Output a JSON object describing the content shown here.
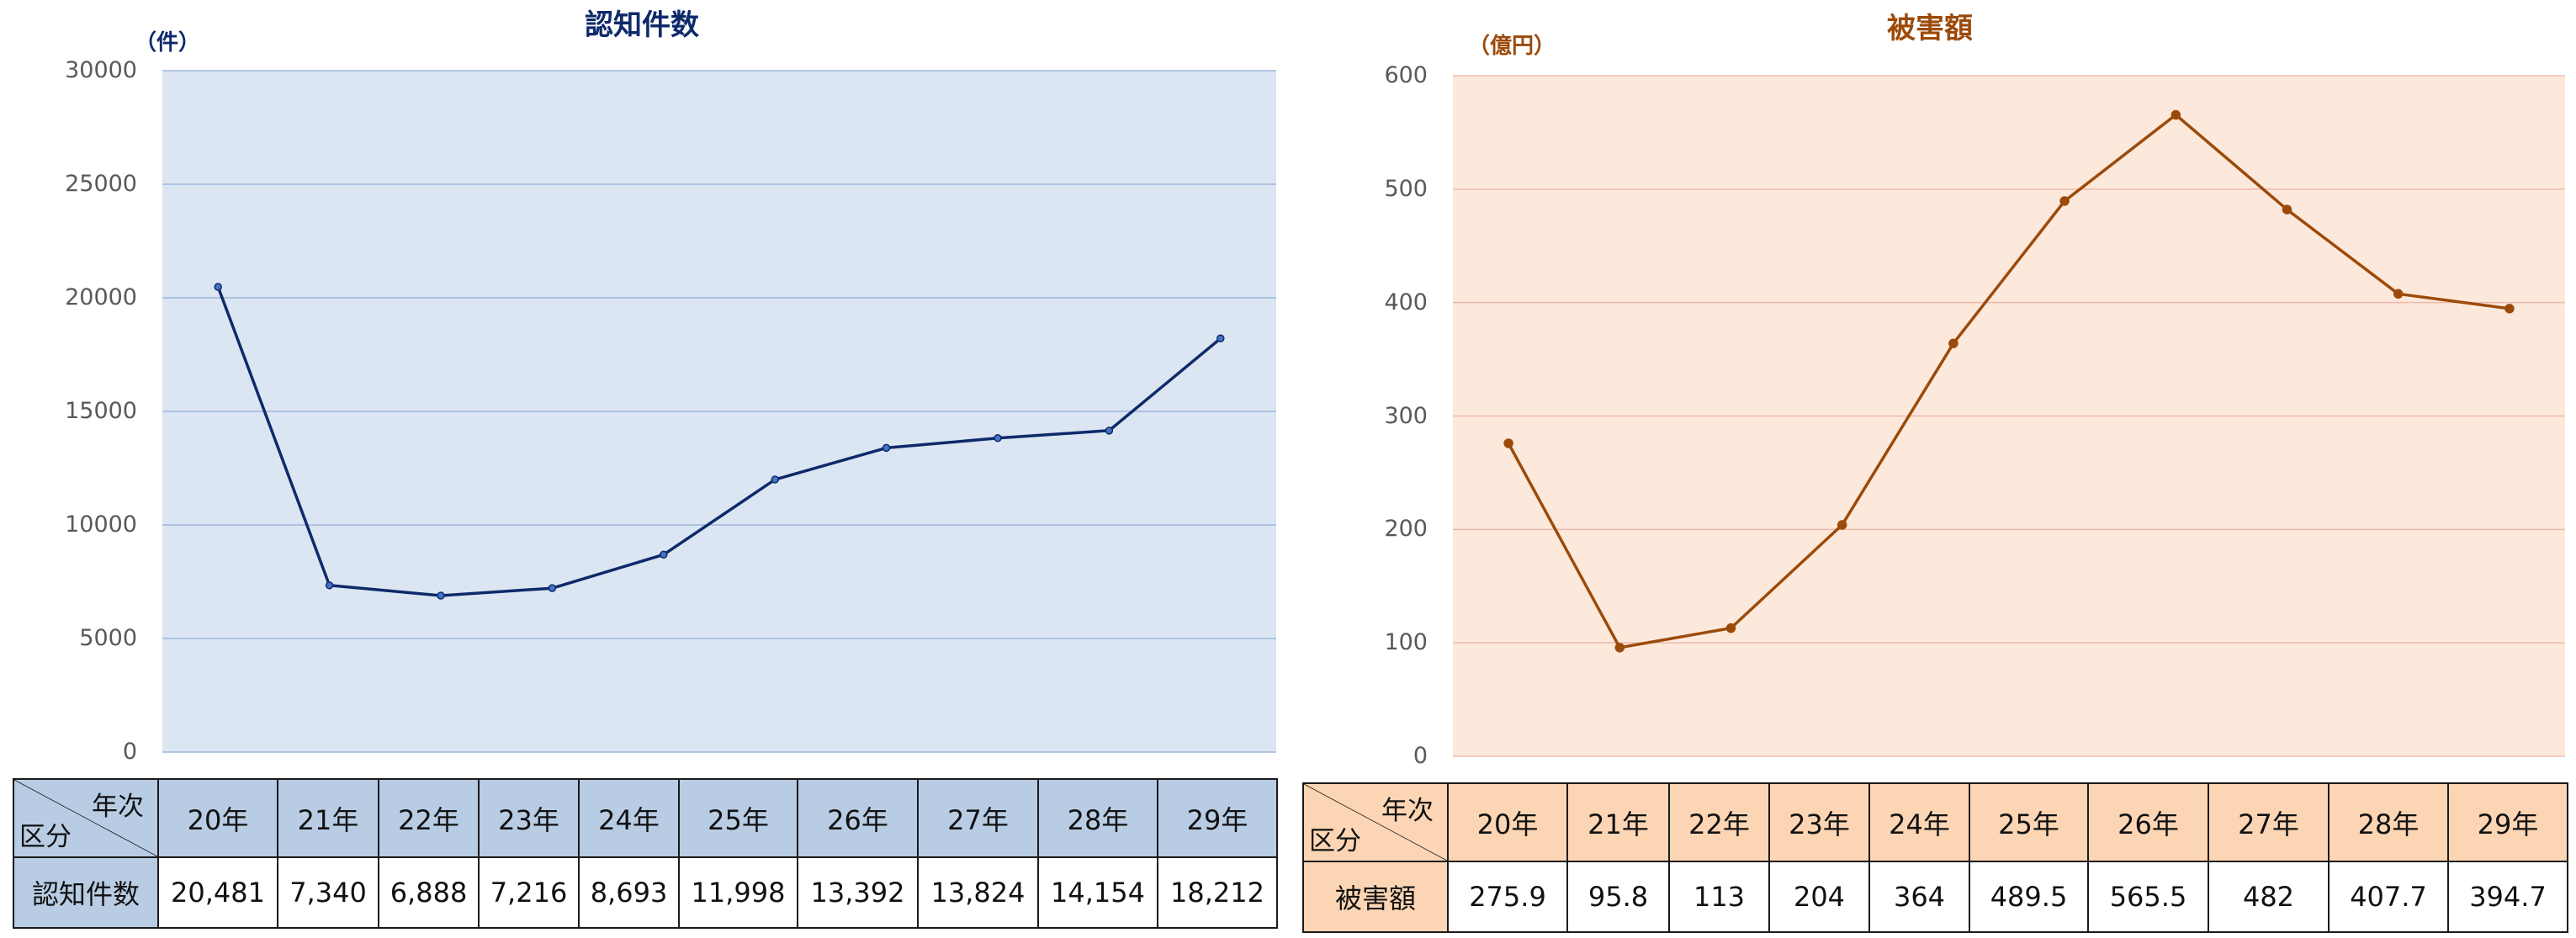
{
  "colors": {
    "left_line": "#0E2A6B",
    "left_marker": "#4472C4",
    "left_plot_bg": "#DCE6F2",
    "left_grid": "#9DB6DB",
    "left_header_fill": "#B8CCE4",
    "right_line": "#9C4A0A",
    "right_marker": "#9C4A0A",
    "right_plot_bg": "#FDE9DB",
    "right_grid": "#EDB9AE",
    "right_header_fill": "#FCD5B4"
  },
  "left": {
    "title": "認知件数",
    "unit": "（件）",
    "table": {
      "corner_top": "年次",
      "corner_bottom": "区分",
      "row_label": "認知件数",
      "years": [
        "20年",
        "21年",
        "22年",
        "23年",
        "24年",
        "25年",
        "26年",
        "27年",
        "28年",
        "29年"
      ],
      "values": [
        "20,481",
        "7,340",
        "6,888",
        "7,216",
        "8,693",
        "11,998",
        "13,392",
        "13,824",
        "14,154",
        "18,212"
      ]
    }
  },
  "right": {
    "title": "被害額",
    "unit": "（億円）",
    "table": {
      "corner_top": "年次",
      "corner_bottom": "区分",
      "row_label": "被害額",
      "years": [
        "20年",
        "21年",
        "22年",
        "23年",
        "24年",
        "25年",
        "26年",
        "27年",
        "28年",
        "29年"
      ],
      "values": [
        "275.9",
        "95.8",
        "113",
        "204",
        "364",
        "489.5",
        "565.5",
        "482",
        "407.7",
        "394.7"
      ]
    }
  },
  "chart_data": [
    {
      "type": "line",
      "title": "認知件数",
      "xlabel": "",
      "ylabel": "（件）",
      "categories": [
        "20年",
        "21年",
        "22年",
        "23年",
        "24年",
        "25年",
        "26年",
        "27年",
        "28年",
        "29年"
      ],
      "values": [
        20481,
        7340,
        6888,
        7216,
        8693,
        11998,
        13392,
        13824,
        14154,
        18212
      ],
      "ylim": [
        0,
        30000
      ],
      "yticks": [
        0,
        5000,
        10000,
        15000,
        20000,
        25000,
        30000
      ],
      "grid": true,
      "legend": "none"
    },
    {
      "type": "line",
      "title": "被害額",
      "xlabel": "",
      "ylabel": "（億円）",
      "categories": [
        "20年",
        "21年",
        "22年",
        "23年",
        "24年",
        "25年",
        "26年",
        "27年",
        "28年",
        "29年"
      ],
      "values": [
        275.9,
        95.8,
        113,
        204,
        364,
        489.5,
        565.5,
        482,
        407.7,
        394.7
      ],
      "ylim": [
        0,
        600
      ],
      "yticks": [
        0,
        100,
        200,
        300,
        400,
        500,
        600
      ],
      "grid": true,
      "legend": "none"
    }
  ]
}
